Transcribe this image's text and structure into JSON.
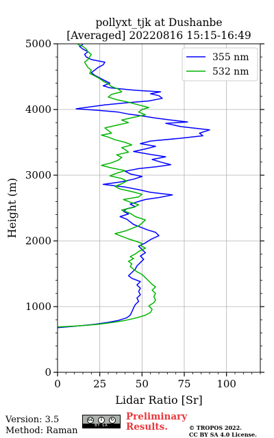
{
  "chart_data": {
    "type": "line",
    "title": [
      "pollyxt_tjk at Dushanbe",
      "[Averaged] 20220816 15:15-16:49"
    ],
    "xlabel": "Lidar Ratio [Sr]",
    "ylabel": "Height (m)",
    "xlim": [
      0,
      120
    ],
    "ylim": [
      0,
      5000
    ],
    "xticks": [
      0,
      25,
      50,
      75,
      100
    ],
    "yticks": [
      0,
      1000,
      2000,
      3000,
      4000,
      5000
    ],
    "grid": true,
    "legend_position": "top-right",
    "series": [
      {
        "name": "355 nm",
        "color": "#0000ff",
        "points": [
          [
            0,
            680
          ],
          [
            10,
            700
          ],
          [
            22,
            730
          ],
          [
            30,
            760
          ],
          [
            36,
            790
          ],
          [
            41,
            830
          ],
          [
            43,
            870
          ],
          [
            44,
            920
          ],
          [
            45,
            980
          ],
          [
            46,
            1030
          ],
          [
            48,
            1080
          ],
          [
            47,
            1130
          ],
          [
            49,
            1180
          ],
          [
            48,
            1230
          ],
          [
            49,
            1280
          ],
          [
            47,
            1330
          ],
          [
            49,
            1380
          ],
          [
            44,
            1430
          ],
          [
            42,
            1470
          ],
          [
            44,
            1520
          ],
          [
            46,
            1570
          ],
          [
            47,
            1620
          ],
          [
            49,
            1670
          ],
          [
            51,
            1720
          ],
          [
            49,
            1770
          ],
          [
            52,
            1820
          ],
          [
            50,
            1870
          ],
          [
            48,
            1920
          ],
          [
            52,
            1970
          ],
          [
            55,
            2020
          ],
          [
            60,
            2080
          ],
          [
            58,
            2130
          ],
          [
            53,
            2170
          ],
          [
            49,
            2210
          ],
          [
            45,
            2250
          ],
          [
            43,
            2290
          ],
          [
            41,
            2330
          ],
          [
            37,
            2370
          ],
          [
            42,
            2410
          ],
          [
            39,
            2450
          ],
          [
            41,
            2490
          ],
          [
            46,
            2520
          ],
          [
            43,
            2560
          ],
          [
            48,
            2600
          ],
          [
            52,
            2630
          ],
          [
            60,
            2660
          ],
          [
            68,
            2700
          ],
          [
            55,
            2740
          ],
          [
            48,
            2780
          ],
          [
            40,
            2820
          ],
          [
            27,
            2860
          ],
          [
            38,
            2900
          ],
          [
            45,
            2940
          ],
          [
            50,
            2980
          ],
          [
            43,
            3020
          ],
          [
            40,
            3060
          ],
          [
            48,
            3100
          ],
          [
            59,
            3130
          ],
          [
            67,
            3160
          ],
          [
            61,
            3200
          ],
          [
            56,
            3240
          ],
          [
            64,
            3280
          ],
          [
            54,
            3320
          ],
          [
            45,
            3360
          ],
          [
            52,
            3400
          ],
          [
            58,
            3440
          ],
          [
            49,
            3480
          ],
          [
            55,
            3520
          ],
          [
            72,
            3560
          ],
          [
            86,
            3600
          ],
          [
            84,
            3640
          ],
          [
            90,
            3690
          ],
          [
            73,
            3740
          ],
          [
            64,
            3790
          ],
          [
            77,
            3810
          ],
          [
            67,
            3840
          ],
          [
            58,
            3870
          ],
          [
            48,
            3910
          ],
          [
            42,
            3930
          ],
          [
            36,
            3960
          ],
          [
            23,
            3990
          ],
          [
            11,
            4010
          ],
          [
            19,
            4040
          ],
          [
            28,
            4070
          ],
          [
            40,
            4100
          ],
          [
            54,
            4130
          ],
          [
            62,
            4170
          ],
          [
            60,
            4210
          ],
          [
            55,
            4240
          ],
          [
            61,
            4270
          ],
          [
            48,
            4290
          ],
          [
            43,
            4300
          ],
          [
            31,
            4330
          ],
          [
            27,
            4360
          ],
          [
            31,
            4400
          ],
          [
            28,
            4440
          ],
          [
            25,
            4480
          ],
          [
            22,
            4520
          ],
          [
            20,
            4560
          ],
          [
            22,
            4600
          ],
          [
            24,
            4640
          ],
          [
            27,
            4680
          ],
          [
            28,
            4720
          ],
          [
            20,
            4760
          ],
          [
            17,
            4800
          ],
          [
            16,
            4840
          ],
          [
            18,
            4880
          ],
          [
            15,
            4920
          ],
          [
            13,
            4960
          ],
          [
            15,
            4990
          ]
        ]
      },
      {
        "name": "532 nm",
        "color": "#00b400",
        "points": [
          [
            0,
            690
          ],
          [
            12,
            705
          ],
          [
            24,
            730
          ],
          [
            33,
            760
          ],
          [
            40,
            790
          ],
          [
            47,
            830
          ],
          [
            52,
            870
          ],
          [
            55,
            910
          ],
          [
            56,
            960
          ],
          [
            54,
            1010
          ],
          [
            57,
            1060
          ],
          [
            58,
            1100
          ],
          [
            57,
            1150
          ],
          [
            58,
            1200
          ],
          [
            56,
            1250
          ],
          [
            58,
            1300
          ],
          [
            56,
            1340
          ],
          [
            54,
            1390
          ],
          [
            52,
            1440
          ],
          [
            50,
            1490
          ],
          [
            47,
            1530
          ],
          [
            45,
            1570
          ],
          [
            43,
            1610
          ],
          [
            44,
            1650
          ],
          [
            42,
            1690
          ],
          [
            45,
            1730
          ],
          [
            43,
            1760
          ],
          [
            46,
            1800
          ],
          [
            48,
            1840
          ],
          [
            52,
            1890
          ],
          [
            49,
            1930
          ],
          [
            50,
            1960
          ],
          [
            47,
            1990
          ],
          [
            42,
            2030
          ],
          [
            38,
            2070
          ],
          [
            34,
            2110
          ],
          [
            40,
            2150
          ],
          [
            44,
            2190
          ],
          [
            48,
            2230
          ],
          [
            50,
            2270
          ],
          [
            52,
            2320
          ],
          [
            46,
            2370
          ],
          [
            43,
            2420
          ],
          [
            38,
            2470
          ],
          [
            45,
            2510
          ],
          [
            48,
            2550
          ],
          [
            43,
            2590
          ],
          [
            39,
            2630
          ],
          [
            48,
            2670
          ],
          [
            50,
            2710
          ],
          [
            44,
            2750
          ],
          [
            37,
            2790
          ],
          [
            34,
            2830
          ],
          [
            38,
            2870
          ],
          [
            41,
            2910
          ],
          [
            38,
            2950
          ],
          [
            31,
            2990
          ],
          [
            35,
            3030
          ],
          [
            40,
            3070
          ],
          [
            32,
            3110
          ],
          [
            26,
            3150
          ],
          [
            32,
            3190
          ],
          [
            36,
            3230
          ],
          [
            38,
            3270
          ],
          [
            35,
            3310
          ],
          [
            42,
            3350
          ],
          [
            40,
            3390
          ],
          [
            38,
            3420
          ],
          [
            44,
            3460
          ],
          [
            40,
            3500
          ],
          [
            34,
            3540
          ],
          [
            30,
            3580
          ],
          [
            26,
            3610
          ],
          [
            32,
            3640
          ],
          [
            30,
            3680
          ],
          [
            28,
            3720
          ],
          [
            35,
            3760
          ],
          [
            42,
            3800
          ],
          [
            38,
            3840
          ],
          [
            45,
            3880
          ],
          [
            52,
            3920
          ],
          [
            48,
            3960
          ],
          [
            50,
            4000
          ],
          [
            54,
            4030
          ],
          [
            48,
            4070
          ],
          [
            42,
            4110
          ],
          [
            35,
            4150
          ],
          [
            30,
            4190
          ],
          [
            32,
            4230
          ],
          [
            38,
            4270
          ],
          [
            36,
            4310
          ],
          [
            32,
            4350
          ],
          [
            30,
            4390
          ],
          [
            27,
            4430
          ],
          [
            25,
            4470
          ],
          [
            22,
            4510
          ],
          [
            19,
            4550
          ],
          [
            20,
            4600
          ],
          [
            18,
            4640
          ],
          [
            17,
            4680
          ],
          [
            16,
            4720
          ],
          [
            18,
            4760
          ],
          [
            19,
            4800
          ],
          [
            20,
            4840
          ],
          [
            18,
            4880
          ],
          [
            17,
            4920
          ],
          [
            15,
            4960
          ],
          [
            12,
            4990
          ]
        ]
      }
    ]
  },
  "footer": {
    "version": "Version: 3.5",
    "method": "Method: Raman",
    "preliminary": "Preliminary Results.",
    "copyright_line1": "© TROPOS 2022.",
    "copyright_line2": "CC BY SA 4.0 License.",
    "license_badge_text": "BY  SA"
  }
}
